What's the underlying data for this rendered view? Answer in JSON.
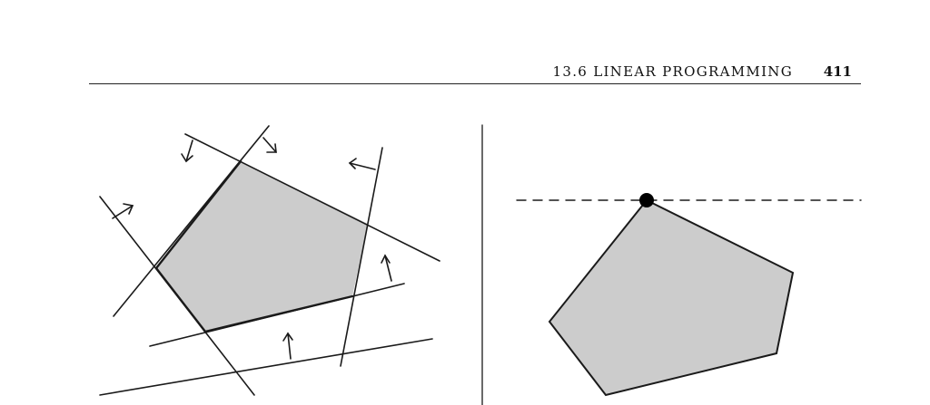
{
  "header": {
    "section": "13.6 LINEAR PROGRAMMING",
    "page_number": "411"
  },
  "colors": {
    "region_fill": "#cccccc",
    "line": "#1a1a1a"
  }
}
